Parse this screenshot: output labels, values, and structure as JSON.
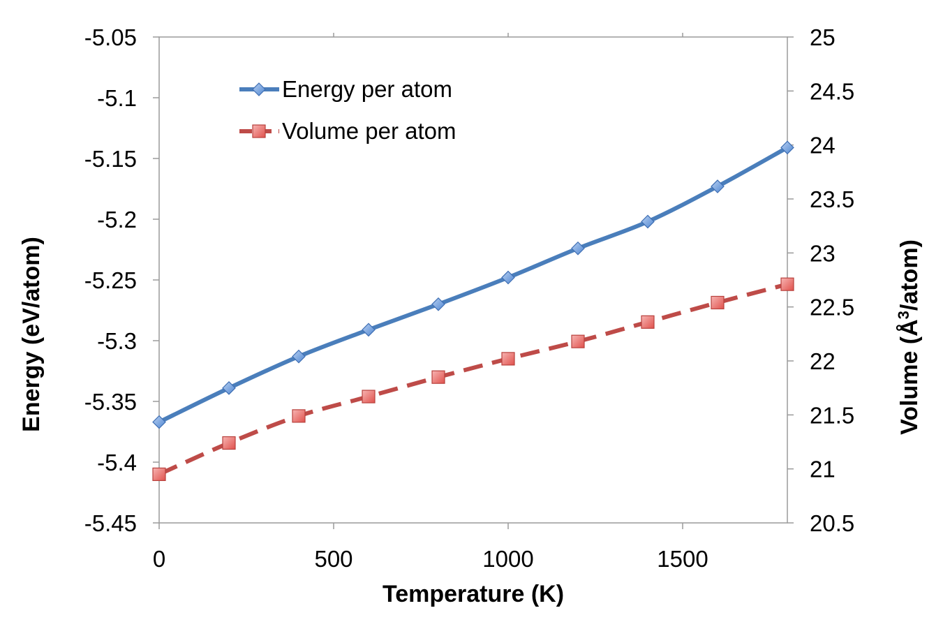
{
  "chart_data": {
    "type": "line",
    "x_label": "Temperature (K)",
    "y_label_left": "Energy (eV/atom)",
    "y_label_right_parts": {
      "before": "Volume  (Å",
      "sup": "3",
      "after": "/atom)"
    },
    "x": [
      0,
      200,
      400,
      600,
      800,
      1000,
      1200,
      1400,
      1600,
      1800
    ],
    "x_ticks": [
      0,
      500,
      1000,
      1500
    ],
    "x_tick_labels": [
      "0",
      "500",
      "1000",
      "1500"
    ],
    "x_range": [
      0,
      1800
    ],
    "y_left_range": [
      -5.45,
      -5.05
    ],
    "y_left_ticks": [
      -5.45,
      -5.4,
      -5.35,
      -5.3,
      -5.25,
      -5.2,
      -5.15,
      -5.1,
      -5.05
    ],
    "y_left_tick_labels": [
      "-5.45",
      "-5.4",
      "-5.35",
      "-5.3",
      "-5.25",
      "-5.2",
      "-5.15",
      "-5.1",
      "-5.05"
    ],
    "y_right_range": [
      20.5,
      25
    ],
    "y_right_ticks": [
      20.5,
      21,
      21.5,
      22,
      22.5,
      23,
      23.5,
      24,
      24.5,
      25
    ],
    "y_right_tick_labels": [
      "20.5",
      "21",
      "21.5",
      "22",
      "22.5",
      "23",
      "23.5",
      "24",
      "24.5",
      "25"
    ],
    "grid": false,
    "legend_position": "top-left",
    "series": [
      {
        "name": "Energy per atom",
        "axis": "left",
        "values": [
          -5.367,
          -5.339,
          -5.313,
          -5.291,
          -5.27,
          -5.248,
          -5.224,
          -5.202,
          -5.173,
          -5.141
        ],
        "color": "#4A7EBB",
        "marker": "diamond",
        "line_style": "solid"
      },
      {
        "name": "Volume per atom",
        "axis": "right",
        "values": [
          20.95,
          21.24,
          21.49,
          21.67,
          21.85,
          22.02,
          22.18,
          22.36,
          22.54,
          22.71
        ],
        "color": "#BE4B48",
        "marker": "square",
        "line_style": "dashed"
      }
    ]
  }
}
